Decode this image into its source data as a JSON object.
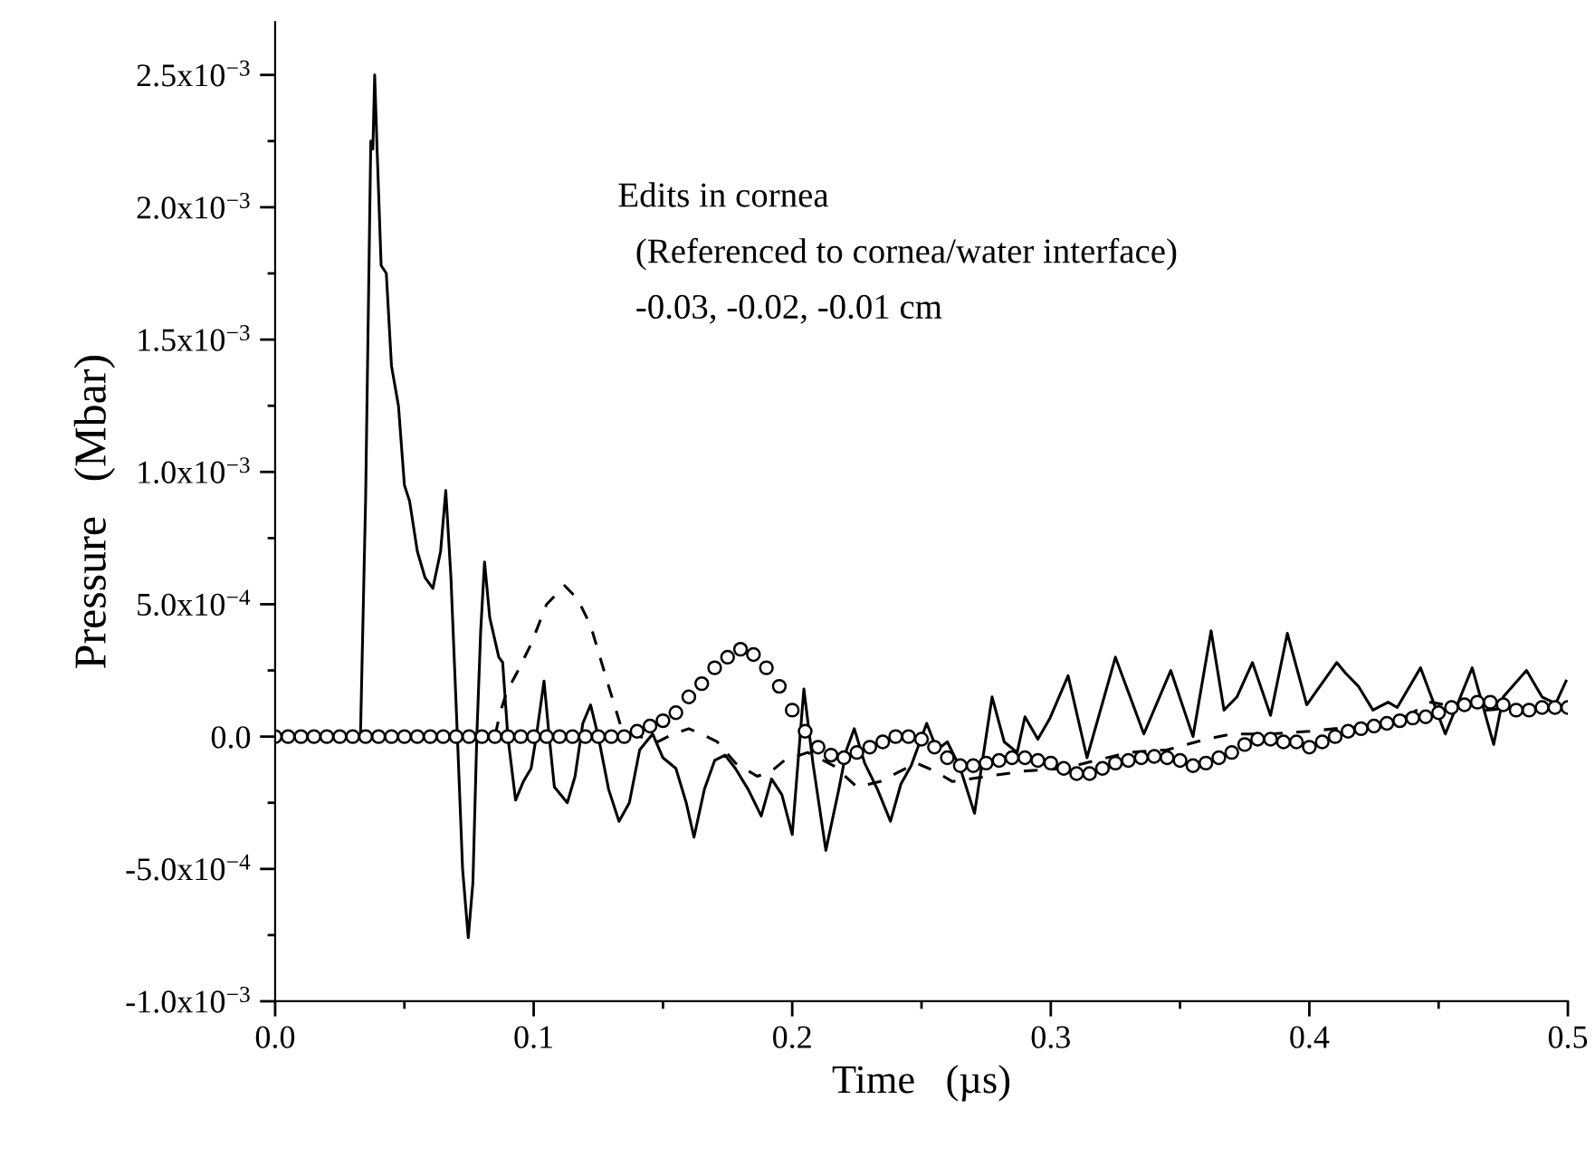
{
  "chart_data": {
    "type": "line",
    "xlabel": "Time   (µs)",
    "ylabel": "Pressure   (Mbar)",
    "annotations": [
      "Edits in cornea",
      "  (Referenced to cornea/water interface)",
      "  -0.03, -0.02, -0.01 cm"
    ],
    "xlim": [
      0,
      0.5
    ],
    "ylim": [
      -0.001,
      0.0027
    ],
    "xticks": [
      {
        "value": 0,
        "label": "0.0"
      },
      {
        "value": 0.05,
        "label": null
      },
      0.1,
      {
        "value": 0.15,
        "label": null
      },
      0.2,
      {
        "value": 0.25,
        "label": null
      },
      0.3,
      {
        "value": 0.35,
        "label": null
      },
      0.4,
      {
        "value": 0.45,
        "label": null
      },
      0.5
    ],
    "yticks": [
      {
        "value": -0.001,
        "label": "-1.0x10$^{−3}$"
      },
      {
        "value": -0.00075,
        "label": null
      },
      {
        "value": -0.0005,
        "label": "-5.0x10$^{−4}$"
      },
      {
        "value": -0.00025,
        "label": null
      },
      {
        "value": 0,
        "label": "0.0"
      },
      {
        "value": 0.00025,
        "label": null
      },
      {
        "value": 0.0005,
        "label": "5.0x10$^{−4}$"
      },
      {
        "value": 0.00075,
        "label": null
      },
      {
        "value": 0.001,
        "label": "1.0x10$^{−3}$"
      },
      {
        "value": 0.00125,
        "label": null
      },
      {
        "value": 0.0015,
        "label": "1.5x10$^{−3}$"
      },
      {
        "value": 0.00175,
        "label": null
      },
      {
        "value": 0.002,
        "label": "2.0x10$^{−3}$"
      },
      {
        "value": 0.00225,
        "label": null
      },
      {
        "value": 0.0025,
        "label": "2.5x10$^{−3}$"
      }
    ],
    "grid": false,
    "legend": false,
    "series": [
      {
        "color": "#000000",
        "line_style": "solid",
        "marker": "none",
        "x": [
          0,
          0.033,
          0.035,
          0.037,
          0.0378,
          0.0385,
          0.0395,
          0.041,
          0.043,
          0.045,
          0.0477,
          0.05,
          0.052,
          0.055,
          0.058,
          0.061,
          0.064,
          0.066,
          0.068,
          0.0705,
          0.0725,
          0.0747,
          0.0765,
          0.078,
          0.0795,
          0.081,
          0.083,
          0.0865,
          0.088,
          0.09,
          0.093,
          0.096,
          0.099,
          0.101,
          0.104,
          0.106,
          0.108,
          0.113,
          0.116,
          0.119,
          0.122,
          0.125,
          0.129,
          0.133,
          0.137,
          0.141,
          0.146,
          0.15,
          0.155,
          0.159,
          0.162,
          0.166,
          0.17,
          0.174,
          0.178,
          0.183,
          0.188,
          0.192,
          0.196,
          0.2,
          0.2045,
          0.208,
          0.213,
          0.218,
          0.221,
          0.224,
          0.228,
          0.233,
          0.238,
          0.242,
          0.246,
          0.252,
          0.256,
          0.26,
          0.265,
          0.2705,
          0.2773,
          0.282,
          0.287,
          0.29,
          0.295,
          0.2997,
          0.3067,
          0.314,
          0.325,
          0.336,
          0.3464,
          0.355,
          0.362,
          0.367,
          0.372,
          0.378,
          0.385,
          0.3915,
          0.399,
          0.4106,
          0.414,
          0.419,
          0.4246,
          0.4305,
          0.434,
          0.443,
          0.4526,
          0.463,
          0.4713,
          0.475,
          0.484,
          0.49,
          0.4953,
          0.4993
        ],
        "values": [
          0,
          0,
          0.0009,
          0.00225,
          0.00222,
          0.0025,
          0.0022,
          0.00178,
          0.00175,
          0.0014,
          0.00125,
          0.00095,
          0.00089,
          0.0007,
          0.0006,
          0.00056,
          0.0007,
          0.00093,
          0.0006,
          0,
          -0.0005,
          -0.00076,
          -0.00055,
          0,
          0.0004,
          0.00066,
          0.00045,
          0.0003,
          0.00028,
          0,
          -0.00024,
          -0.00017,
          -0.00012,
          0,
          0.00021,
          0,
          -0.00019,
          -0.00025,
          -0.00015,
          5e-05,
          0.00012,
          0,
          -0.0002,
          -0.00032,
          -0.00025,
          -5e-05,
          1e-05,
          -8e-05,
          -0.00012,
          -0.00025,
          -0.00038,
          -0.0002,
          -9e-05,
          -7e-05,
          -0.00012,
          -0.0002,
          -0.0003,
          -0.00016,
          -0.00022,
          -0.00037,
          0.00018,
          -0.0001,
          -0.00043,
          -0.0002,
          -5e-05,
          3e-05,
          -0.0001,
          -0.0002,
          -0.00032,
          -0.00018,
          -0.00011,
          5e-05,
          -5e-05,
          -2e-05,
          -0.00012,
          -0.00029,
          0.00015,
          -2e-05,
          -6e-05,
          7.5e-05,
          -1e-05,
          7e-05,
          0.00023,
          -8e-05,
          0.0003,
          1e-05,
          0.00025,
          0,
          0.0004,
          0.0001,
          0.00015,
          0.00028,
          8e-05,
          0.00039,
          0.00012,
          0.00028,
          0.00024,
          0.00019,
          0.0001,
          0.00013,
          0.00011,
          0.00026,
          1e-05,
          0.00026,
          -3e-05,
          0.00015,
          0.00025,
          0.00015,
          0.000125,
          0.00021
        ]
      },
      {
        "color": "#000000",
        "line_style": "dashed",
        "marker": "none",
        "x": [
          0,
          0.085,
          0.087,
          0.0896,
          0.094,
          0.099,
          0.105,
          0.112,
          0.117,
          0.122,
          0.129,
          0.134,
          0.141,
          0.148,
          0.154,
          0.16,
          0.165,
          0.171,
          0.178,
          0.1865,
          0.192,
          0.197,
          0.206,
          0.216,
          0.225,
          0.234,
          0.248,
          0.255,
          0.262,
          0.2755,
          0.29,
          0.305,
          0.33,
          0.345,
          0.36,
          0.37,
          0.385,
          0.4,
          0.41,
          0.425,
          0.437,
          0.447,
          0.458,
          0.468,
          0.482,
          0.496
        ],
        "values": [
          0,
          0,
          9e-05,
          0.00017,
          0.00025,
          0.00035,
          0.0005,
          0.00057,
          0.00052,
          0.00042,
          0.00019,
          3e-05,
          0,
          -2e-05,
          1e-05,
          3e-05,
          1e-05,
          -2e-05,
          -0.0001,
          -0.00015,
          -0.00013,
          -9e-05,
          -6e-05,
          -0.00011,
          -0.00019,
          -0.00017,
          -0.0001,
          -0.00013,
          -0.00017,
          -0.00015,
          -0.00013,
          -0.00012,
          -6e-05,
          -5e-05,
          -1e-05,
          1e-05,
          1e-05,
          2e-05,
          3e-05,
          4e-05,
          7.5e-05,
          0.00013,
          0.00011,
          0.0001,
          0.00011,
          0.00012
        ]
      },
      {
        "type": "scatter",
        "color": "#000000",
        "marker": "circle",
        "x": [
          0,
          0.005,
          0.01,
          0.015,
          0.02,
          0.025,
          0.03,
          0.035,
          0.04,
          0.045,
          0.05,
          0.055,
          0.06,
          0.065,
          0.07,
          0.075,
          0.08,
          0.085,
          0.09,
          0.095,
          0.1,
          0.105,
          0.11,
          0.115,
          0.12,
          0.125,
          0.13,
          0.135,
          0.14,
          0.145,
          0.15,
          0.155,
          0.16,
          0.165,
          0.17,
          0.175,
          0.18,
          0.185,
          0.19,
          0.195,
          0.2,
          0.205,
          0.21,
          0.215,
          0.22,
          0.225,
          0.23,
          0.235,
          0.24,
          0.245,
          0.25,
          0.255,
          0.26,
          0.265,
          0.27,
          0.275,
          0.28,
          0.285,
          0.29,
          0.295,
          0.3,
          0.305,
          0.31,
          0.315,
          0.32,
          0.325,
          0.33,
          0.335,
          0.34,
          0.345,
          0.35,
          0.355,
          0.36,
          0.365,
          0.37,
          0.375,
          0.38,
          0.385,
          0.39,
          0.395,
          0.4,
          0.405,
          0.41,
          0.415,
          0.42,
          0.425,
          0.43,
          0.435,
          0.44,
          0.445,
          0.45,
          0.455,
          0.46,
          0.465,
          0.47,
          0.475,
          0.48,
          0.485,
          0.49,
          0.495,
          0.5
        ],
        "values": [
          0,
          0,
          0,
          0,
          0,
          0,
          0,
          0,
          0,
          0,
          0,
          0,
          0,
          0,
          0,
          0,
          0,
          0,
          0,
          0,
          0,
          0,
          0,
          0,
          0,
          0,
          0,
          0,
          2e-05,
          4e-05,
          6e-05,
          9e-05,
          0.00015,
          0.0002,
          0.00026,
          0.0003,
          0.00033,
          0.00031,
          0.00026,
          0.00019,
          0.0001,
          2e-05,
          -4e-05,
          -7e-05,
          -8e-05,
          -6e-05,
          -4e-05,
          -2e-05,
          0,
          0,
          -1e-05,
          -4e-05,
          -8e-05,
          -0.00011,
          -0.00011,
          -0.0001,
          -9e-05,
          -8e-05,
          -8e-05,
          -9e-05,
          -0.0001,
          -0.00012,
          -0.00014,
          -0.00014,
          -0.00012,
          -0.0001,
          -9e-05,
          -8e-05,
          -7.5e-05,
          -8e-05,
          -9e-05,
          -0.00011,
          -0.0001,
          -8e-05,
          -6e-05,
          -3e-05,
          -1e-05,
          -1e-05,
          -2e-05,
          -2e-05,
          -4e-05,
          -2e-05,
          0,
          2e-05,
          3e-05,
          4e-05,
          5e-05,
          6e-05,
          7e-05,
          7.5e-05,
          9e-05,
          0.00011,
          0.00012,
          0.00013,
          0.00013,
          0.00012,
          0.0001,
          0.0001,
          0.00011,
          0.00011,
          0.00011
        ]
      }
    ]
  }
}
